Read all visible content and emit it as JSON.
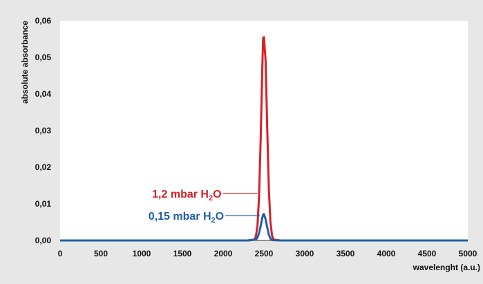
{
  "chart_data": {
    "type": "line",
    "title": "",
    "xlabel": "wavelenght (a.u.)",
    "ylabel": "absolute absorbance",
    "xlim": [
      0,
      5000
    ],
    "ylim": [
      0,
      0.06
    ],
    "grid": false,
    "x_ticks": [
      "0",
      "500",
      "1000",
      "1500",
      "2000",
      "2500",
      "3000",
      "3500",
      "4000",
      "4500",
      "5000"
    ],
    "y_ticks": [
      "0,00",
      "0,01",
      "0,02",
      "0,03",
      "0,04",
      "0,05",
      "0,06"
    ],
    "series": [
      {
        "name": "1,2 mbar H2O",
        "label_main": "1,2 mbar H",
        "label_sub": "2",
        "label_end": "O",
        "color": "#d62027",
        "x": [
          0,
          2300,
          2380,
          2400,
          2420,
          2440,
          2460,
          2480,
          2490,
          2500,
          2520,
          2540,
          2560,
          2580,
          2600,
          2620,
          2700,
          5000
        ],
        "y": [
          0,
          0,
          0.0002,
          0.001,
          0.004,
          0.012,
          0.028,
          0.047,
          0.0553,
          0.0555,
          0.049,
          0.031,
          0.014,
          0.005,
          0.0012,
          0.0002,
          0,
          0
        ]
      },
      {
        "name": "0,15 mbar H2O",
        "label_main": "0,15 mbar H",
        "label_sub": "2",
        "label_end": "O",
        "color": "#1f5fa6",
        "x": [
          0,
          2300,
          2400,
          2420,
          2440,
          2460,
          2480,
          2490,
          2500,
          2520,
          2540,
          2560,
          2580,
          2600,
          2700,
          5000
        ],
        "y": [
          0,
          0,
          0.0002,
          0.0008,
          0.002,
          0.004,
          0.0062,
          0.0071,
          0.0072,
          0.0058,
          0.0036,
          0.0016,
          0.0005,
          0.0001,
          0,
          0
        ]
      }
    ],
    "annotation_anchors": [
      {
        "series": 0,
        "x": 2420,
        "y": 0.0128
      },
      {
        "series": 1,
        "x": 2450,
        "y": 0.0068
      }
    ],
    "background": "#e7e7e7",
    "plot_background": "#ffffff"
  }
}
